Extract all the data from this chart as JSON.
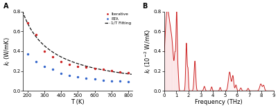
{
  "panel_A": {
    "T_iterative": [
      200,
      250,
      300,
      350,
      400,
      450,
      500,
      550,
      600,
      650,
      700,
      750,
      800
    ],
    "k_iterative": [
      0.685,
      0.565,
      0.4,
      0.345,
      0.295,
      0.268,
      0.248,
      0.237,
      0.228,
      0.218,
      0.205,
      0.193,
      0.183
    ],
    "T_RTA": [
      200,
      250,
      300,
      350,
      400,
      450,
      500,
      550,
      600,
      650,
      700,
      750,
      800
    ],
    "k_RTA": [
      0.375,
      0.295,
      0.248,
      0.215,
      0.175,
      0.153,
      0.138,
      0.128,
      0.118,
      0.108,
      0.103,
      0.097,
      0.092
    ],
    "fit_T_start": 170,
    "fit_T_end": 820,
    "fit_A": 137.0,
    "xlabel": "T (K)",
    "ylabel": "$k_l$ (W/mK)",
    "xlim": [
      175,
      825
    ],
    "ylim": [
      0.0,
      0.8
    ],
    "yticks": [
      0.0,
      0.2,
      0.4,
      0.6,
      0.8
    ],
    "xticks": [
      200,
      300,
      400,
      500,
      600,
      700,
      800
    ],
    "iterative_color": "#cc2222",
    "RTA_color": "#3366cc",
    "fit_color": "#111111",
    "label_iterative": "Iterative",
    "label_RTA": "RTA",
    "label_fit": "1/T Fitting",
    "panel_label": "A"
  },
  "panel_B": {
    "xlabel": "Frequency (THz)",
    "ylabel": "$k_l$ (10$^{-2}$ W/mK)",
    "xlim": [
      0,
      9
    ],
    "ylim": [
      0.0,
      0.8
    ],
    "yticks": [
      0.0,
      0.2,
      0.4,
      0.6,
      0.8
    ],
    "xticks": [
      0,
      1,
      2,
      3,
      4,
      5,
      6,
      7,
      8,
      9
    ],
    "line_color": "#cc2222",
    "fill_color_dark": "#dd4444",
    "fill_color_light": "#fadadd",
    "panel_label": "B"
  }
}
